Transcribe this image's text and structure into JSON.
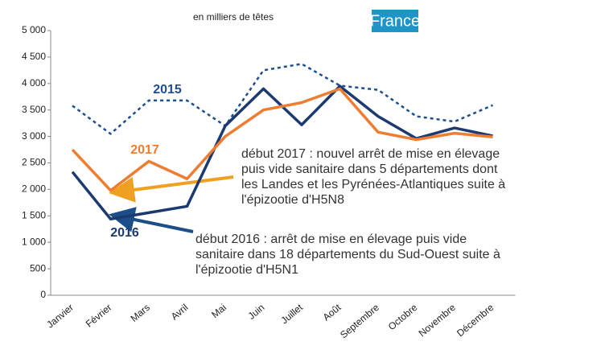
{
  "chart_data": {
    "type": "line",
    "subtitle": "en milliers de têtes",
    "title": "France",
    "categories": [
      "Janvier",
      "Février",
      "Mars",
      "Avril",
      "Mai",
      "Juin",
      "Juillet",
      "Août",
      "Septembre",
      "Octobre",
      "Novembre",
      "Décembre"
    ],
    "series": [
      {
        "name": "2015",
        "color": "#1f4e8f",
        "dashed": true,
        "values": [
          3580,
          3050,
          3680,
          3680,
          3200,
          4250,
          4370,
          3960,
          3880,
          3380,
          3280,
          3590
        ]
      },
      {
        "name": "2016",
        "color": "#1c3a70",
        "dashed": false,
        "values": [
          2330,
          1440,
          1560,
          1680,
          3200,
          3900,
          3220,
          3950,
          3380,
          2960,
          3160,
          3010
        ]
      },
      {
        "name": "2017",
        "color": "#ef7d31",
        "dashed": false,
        "values": [
          2750,
          1980,
          2530,
          2200,
          3000,
          3500,
          3640,
          3900,
          3080,
          2940,
          3060,
          2990
        ]
      }
    ],
    "ylim": [
      0,
      5000
    ],
    "yticks": [
      0,
      500,
      {
        "value": 1000,
        "label": "1 000"
      },
      {
        "value": 1500,
        "label": "1 500"
      },
      {
        "value": 2000,
        "label": "2 000"
      },
      {
        "value": 2500,
        "label": "2 500"
      },
      {
        "value": 3000,
        "label": "3 000"
      },
      {
        "value": 3500,
        "label": "3 500"
      },
      {
        "value": 4000,
        "label": "4 000"
      },
      {
        "value": 4500,
        "label": "4 500"
      },
      {
        "value": 5000,
        "label": "5 000"
      }
    ],
    "annotations": [
      {
        "lines": [
          "début 2017 : nouvel arrêt de mise en élevage",
          "puis vide sanitaire dans 5 départements dont",
          "les Landes et les Pyrénées-Atlantiques suite à",
          "l'épizootie d'H5N8"
        ]
      },
      {
        "lines": [
          "début 2016 : arrêt de mise en élevage puis vide",
          "sanitaire dans 18 départements du Sud-Ouest suite à",
          "l'épizootie d'H5N1"
        ]
      }
    ]
  }
}
